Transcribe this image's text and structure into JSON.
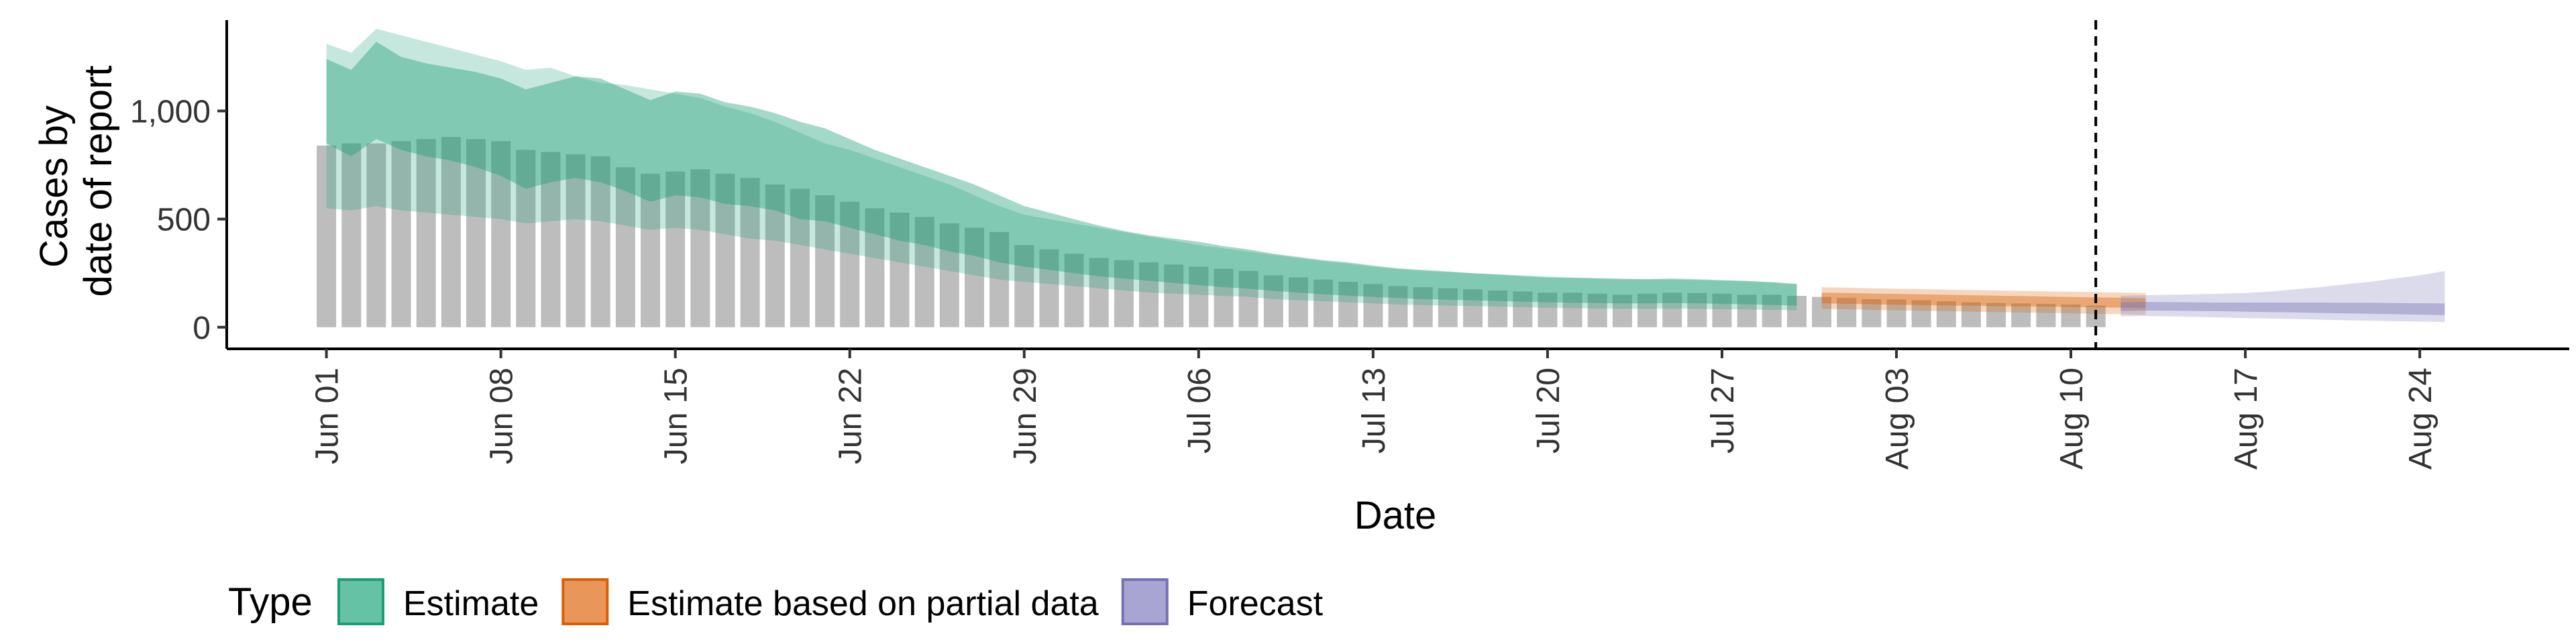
{
  "chart_data": {
    "type": "area",
    "title": "",
    "xlabel": "Date",
    "ylabel_lines": [
      "Cases by",
      "date of report"
    ],
    "yticks": [
      0,
      500,
      1000
    ],
    "ytick_labels": [
      "0",
      "500",
      "1,000"
    ],
    "ylim": [
      -100,
      1420
    ],
    "xlim": [
      "2020-05-28",
      "2020-08-30"
    ],
    "xticks": [
      "2020-06-01",
      "2020-06-08",
      "2020-06-15",
      "2020-06-22",
      "2020-06-29",
      "2020-07-06",
      "2020-07-13",
      "2020-07-20",
      "2020-07-27",
      "2020-08-03",
      "2020-08-10",
      "2020-08-17",
      "2020-08-24"
    ],
    "xtick_labels": [
      "Jun 01",
      "Jun 08",
      "Jun 15",
      "Jun 22",
      "Jun 29",
      "Jul 06",
      "Jul 13",
      "Jul 20",
      "Jul 27",
      "Aug 03",
      "Aug 10",
      "Aug 17",
      "Aug 24"
    ],
    "vline_date": "2020-08-11",
    "legend": {
      "title": "Type",
      "position": "bottom-left",
      "items": [
        {
          "label": "Estimate",
          "fill": "#66c2a5",
          "stroke": "#1b9e77"
        },
        {
          "label": "Estimate based on partial data",
          "fill": "#e8965a",
          "stroke": "#d95f02"
        },
        {
          "label": "Forecast",
          "fill": "#a8a5d3",
          "stroke": "#7570b3"
        }
      ]
    },
    "colors": {
      "bars": "#bdbdbd",
      "estimate": "#1b9e77",
      "partial": "#d95f02",
      "forecast": "#7570b3",
      "vline": "#000000",
      "axis": "#000000"
    },
    "observed": {
      "start": "2020-06-01",
      "values": [
        840,
        850,
        850,
        860,
        870,
        880,
        870,
        860,
        820,
        810,
        800,
        790,
        740,
        710,
        720,
        730,
        710,
        690,
        660,
        640,
        610,
        580,
        550,
        530,
        510,
        480,
        460,
        440,
        380,
        360,
        340,
        320,
        310,
        300,
        290,
        280,
        270,
        260,
        240,
        230,
        220,
        210,
        200,
        190,
        185,
        180,
        175,
        170,
        165,
        160,
        160,
        155,
        150,
        155,
        160,
        158,
        155,
        150,
        150,
        145,
        140,
        135,
        130,
        128,
        125,
        120,
        115,
        112,
        110,
        108,
        105,
        100
      ]
    },
    "series": [
      {
        "name": "Estimate",
        "start": "2020-06-01",
        "median": [
          1060,
          1000,
          1110,
          1050,
          1020,
          1000,
          980,
          950,
          900,
          920,
          940,
          920,
          880,
          830,
          860,
          840,
          800,
          780,
          760,
          720,
          700,
          650,
          610,
          570,
          540,
          500,
          470,
          430,
          400,
          380,
          360,
          340,
          320,
          310,
          300,
          290,
          275,
          265,
          250,
          240,
          230,
          220,
          210,
          200,
          195,
          190,
          185,
          180,
          175,
          170,
          170,
          168,
          165,
          165,
          168,
          165,
          162,
          160,
          155,
          150
        ],
        "inner_low": [
          850,
          790,
          870,
          820,
          790,
          770,
          740,
          700,
          640,
          670,
          690,
          670,
          630,
          580,
          610,
          600,
          570,
          560,
          540,
          500,
          490,
          460,
          430,
          400,
          380,
          350,
          330,
          300,
          280,
          265,
          250,
          235,
          225,
          215,
          205,
          195,
          185,
          178,
          168,
          160,
          152,
          146,
          140,
          135,
          130,
          127,
          124,
          121,
          118,
          115,
          113,
          112,
          110,
          110,
          112,
          110,
          108,
          106,
          103,
          100
        ],
        "inner_high": [
          1240,
          1190,
          1320,
          1250,
          1220,
          1200,
          1180,
          1150,
          1100,
          1130,
          1160,
          1150,
          1100,
          1050,
          1090,
          1080,
          1040,
          1020,
          990,
          950,
          920,
          870,
          820,
          780,
          740,
          700,
          660,
          610,
          560,
          530,
          500,
          470,
          445,
          425,
          410,
          395,
          375,
          360,
          340,
          325,
          310,
          300,
          285,
          272,
          265,
          258,
          250,
          243,
          236,
          230,
          228,
          225,
          222,
          222,
          225,
          222,
          218,
          214,
          208,
          200
        ],
        "outer_low": [
          550,
          540,
          560,
          540,
          530,
          520,
          510,
          500,
          480,
          490,
          500,
          490,
          470,
          450,
          460,
          450,
          430,
          410,
          400,
          380,
          360,
          340,
          320,
          300,
          280,
          260,
          240,
          220,
          210,
          200,
          190,
          180,
          170,
          160,
          155,
          150,
          145,
          140,
          130,
          125,
          120,
          115,
          110,
          105,
          102,
          100,
          98,
          95,
          92,
          90,
          88,
          87,
          85,
          85,
          86,
          85,
          83,
          82,
          80,
          78
        ],
        "outer_high": [
          1310,
          1270,
          1380,
          1350,
          1320,
          1290,
          1260,
          1230,
          1190,
          1200,
          1160,
          1130,
          1120,
          1100,
          1080,
          1060,
          1020,
          990,
          950,
          900,
          850,
          820,
          780,
          740,
          700,
          660,
          610,
          560,
          520,
          500,
          480,
          460,
          440,
          420,
          400,
          380,
          365,
          350,
          335,
          320,
          305,
          295,
          280,
          270,
          260,
          255,
          250,
          245,
          240,
          235,
          230,
          228,
          225,
          222,
          220,
          218,
          215,
          212,
          208,
          200
        ]
      },
      {
        "name": "Estimate based on partial data",
        "start": "2020-07-31",
        "median": [
          140,
          138,
          135,
          133,
          130,
          128,
          127,
          125,
          123,
          122,
          120,
          118,
          116,
          115
        ],
        "inner_low": [
          110,
          108,
          106,
          104,
          102,
          100,
          99,
          97,
          96,
          95,
          93,
          92,
          90,
          88
        ],
        "inner_high": [
          160,
          158,
          156,
          154,
          152,
          150,
          148,
          146,
          144,
          142,
          140,
          138,
          136,
          134
        ],
        "outer_low": [
          85,
          83,
          80,
          78,
          76,
          74,
          72,
          70,
          68,
          66,
          64,
          62,
          60,
          58
        ],
        "outer_high": [
          185,
          183,
          180,
          178,
          176,
          174,
          172,
          170,
          168,
          166,
          164,
          162,
          160,
          158
        ]
      },
      {
        "name": "Forecast",
        "start": "2020-08-12",
        "median": [
          95,
          97,
          96,
          95,
          94,
          93,
          92,
          91,
          90,
          88,
          87,
          86,
          84,
          82
        ],
        "inner_low": [
          75,
          77,
          76,
          75,
          74,
          72,
          70,
          68,
          66,
          64,
          62,
          60,
          58,
          56
        ],
        "inner_high": [
          115,
          117,
          116,
          115,
          114,
          114,
          114,
          114,
          114,
          113,
          113,
          112,
          111,
          110
        ],
        "outer_low": [
          50,
          52,
          50,
          48,
          45,
          42,
          40,
          38,
          35,
          32,
          30,
          28,
          26,
          24
        ],
        "outer_high": [
          145,
          148,
          150,
          152,
          155,
          158,
          165,
          175,
          185,
          198,
          210,
          225,
          240,
          260
        ]
      }
    ]
  }
}
